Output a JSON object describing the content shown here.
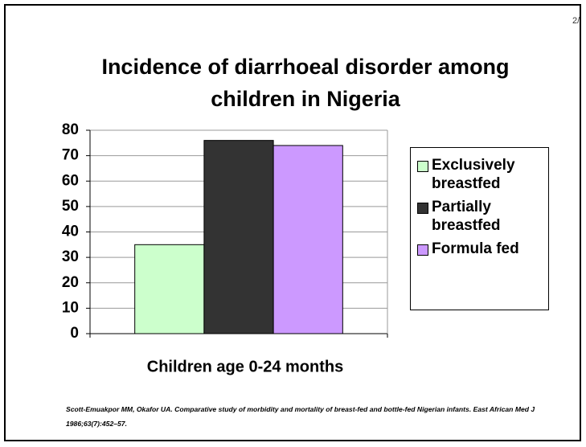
{
  "page_number": "2/",
  "chart_data": {
    "type": "bar",
    "title": "Incidence of diarrhoeal disorder among children in Nigeria",
    "categories": [
      "Children age 0-24 months"
    ],
    "series": [
      {
        "name": "Exclusively breastfed",
        "color": "#ccffcc",
        "values": [
          35
        ]
      },
      {
        "name": "Partially breastfed",
        "color": "#333333",
        "values": [
          76
        ]
      },
      {
        "name": "Formula fed",
        "color": "#cc99ff",
        "values": [
          74
        ]
      }
    ],
    "ylim": [
      0,
      80
    ],
    "yticks": [
      0,
      10,
      20,
      30,
      40,
      50,
      60,
      70,
      80
    ],
    "grid": true,
    "legend": "right"
  },
  "source": "Scott-Emuakpor MM, Okafor UA. Comparative study of morbidity and mortality of breast-fed and bottle-fed Nigerian infants. East African Med J 1986;63(7):452–57."
}
